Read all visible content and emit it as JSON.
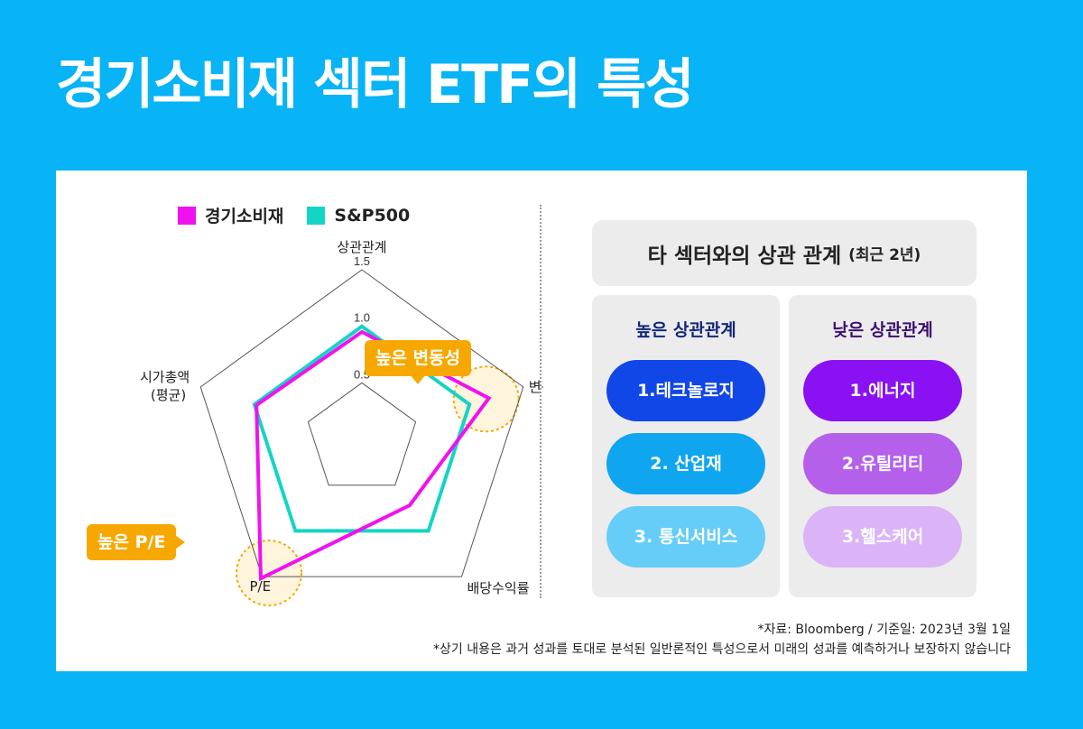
{
  "title": "경기소비재 섹터 ETF의 특성",
  "legend": [
    {
      "label": "경기소비재",
      "color": "#f012ee"
    },
    {
      "label": "S&P500",
      "color": "#14d4c4"
    }
  ],
  "chart_data": {
    "type": "radar",
    "axes": [
      "상관관계",
      "변동성",
      "배당수익률",
      "P/E",
      "시가총액 (평균)"
    ],
    "axis_labels": {
      "top": "상관관계",
      "right": "변동성",
      "bottom_right": "배당수익률",
      "bottom_left": "P/E",
      "left_line1": "시가총액",
      "left_line2": "(평균)"
    },
    "rings": [
      0.5,
      1.0,
      1.5
    ],
    "ring_labels": [
      "0.5",
      "1.0",
      "1.5"
    ],
    "range": [
      0,
      1.5
    ],
    "series": [
      {
        "name": "경기소비재",
        "color": "#f012ee",
        "values": [
          0.95,
          1.18,
          0.72,
          1.52,
          0.98
        ]
      },
      {
        "name": "S&P500",
        "color": "#14d4c4",
        "values": [
          1.0,
          1.0,
          1.0,
          1.0,
          1.0
        ]
      }
    ],
    "highlight_color": "#f7a800"
  },
  "callouts": {
    "volatility": "높은 변동성",
    "pe": "높은 P/E"
  },
  "correlation": {
    "title": "타 섹터와의 상관 관계",
    "subtitle": "(최근 2년)",
    "high": {
      "title": "높은 상관관계",
      "items": [
        {
          "label": "1.테크놀로지",
          "color": "#1147e6"
        },
        {
          "label": "2. 산업재",
          "color": "#0fa6ef"
        },
        {
          "label": "3. 통신서비스",
          "color": "#66cdf8"
        }
      ]
    },
    "low": {
      "title": "낮은 상관관계",
      "items": [
        {
          "label": "1.에너지",
          "color": "#8a12f2"
        },
        {
          "label": "2.유틸리티",
          "color": "#b460eb"
        },
        {
          "label": "3.헬스케어",
          "color": "#dbb4f8"
        }
      ]
    }
  },
  "footnotes": [
    "*자료: Bloomberg / 기준일: 2023년 3월 1일",
    "*상기 내용은 과거 성과를 토대로 분석된 일반론적인 특성으로서 미래의 성과를 예측하거나 보장하지 않습니다"
  ]
}
